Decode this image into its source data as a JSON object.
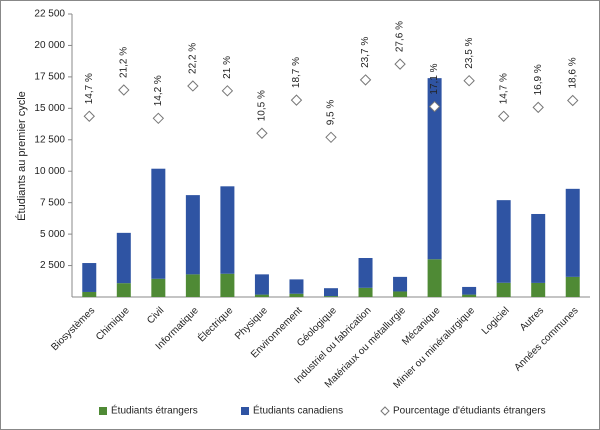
{
  "chart_data": {
    "type": "bar",
    "stacked": true,
    "y_label": "Étudiants au premier cycle",
    "categories": [
      "Biosystèmes",
      "Chimique",
      "Civil",
      "Informatique",
      "Électrique",
      "Physique",
      "Environnement",
      "Géologique",
      "Industriel ou fabrication",
      "Matériaux ou métallurgie",
      "Mécanique",
      "Minier ou minéralurgique",
      "Logiciel",
      "Autres",
      "Années communes"
    ],
    "series": [
      {
        "name": "Étudiants étrangers",
        "color": "#4f8a35",
        "values": [
          400,
          1100,
          1450,
          1800,
          1850,
          190,
          260,
          70,
          730,
          440,
          3000,
          190,
          1130,
          1120,
          1600
        ]
      },
      {
        "name": "Étudiants canadiens",
        "color": "#2f54a3",
        "values": [
          2300,
          4000,
          8750,
          6300,
          6950,
          1610,
          1140,
          630,
          2370,
          1160,
          14400,
          610,
          6570,
          5480,
          7000
        ]
      },
      {
        "name": "Pourcentage d'étudiants étrangers",
        "color": "#ffffff",
        "marker": "diamond",
        "axis": "y2",
        "values": [
          14.7,
          21.2,
          14.2,
          22.2,
          21,
          10.5,
          18.7,
          9.5,
          23.7,
          27.6,
          17.1,
          23.5,
          14.7,
          16.9,
          18.6
        ],
        "value_labels": [
          "14,7 %",
          "21,2 %",
          "14,2 %",
          "22,2 %",
          "21 %",
          "10,5 %",
          "18,7 %",
          "9,5 %",
          "23,7 %",
          "27,6 %",
          "17,1 %",
          "23,5 %",
          "14,7 %",
          "16,9 %",
          "18,6 %"
        ]
      }
    ],
    "ylim": [
      0,
      22500
    ],
    "yticks": [
      {
        "value": 2500,
        "label": "2 500"
      },
      {
        "value": 5000,
        "label": "5 000"
      },
      {
        "value": 7500,
        "label": "7 500"
      },
      {
        "value": 10000,
        "label": "10 000"
      },
      {
        "value": 12500,
        "label": "12 500"
      },
      {
        "value": 15000,
        "label": "15 000"
      },
      {
        "value": 17500,
        "label": "17 500"
      },
      {
        "value": 20000,
        "label": "20 000"
      },
      {
        "value": 22500,
        "label": "22 500"
      }
    ],
    "y2lim": [
      -30,
      40
    ],
    "grid": false
  }
}
